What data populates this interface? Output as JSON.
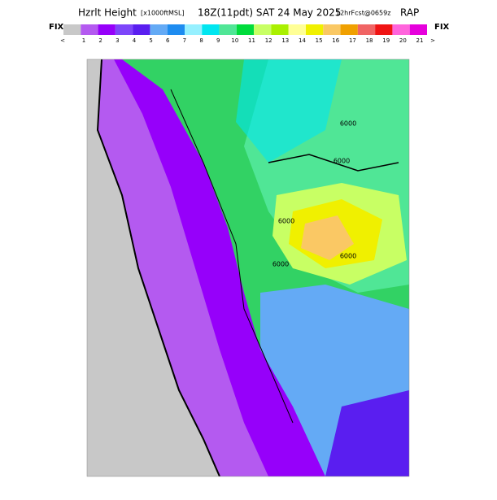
{
  "header": {
    "title": "Hzrlt Height",
    "units": "[x1000ftMSL]",
    "valid": "18Z(11pdt) SAT 24 May 2025",
    "forecast": "12hrFcst@0659z",
    "model": "RAP"
  },
  "colorbar": {
    "left_label": "FIX",
    "right_label": "FIX",
    "low_label": "<",
    "high_label": ">",
    "labels": [
      "1",
      "2",
      "3",
      "4",
      "5",
      "6",
      "7",
      "8",
      "9",
      "10",
      "11",
      "12",
      "13",
      "14",
      "15",
      "16",
      "17",
      "18",
      "19",
      "20",
      "21"
    ],
    "colors": [
      "#c8c8c8",
      "#b45af0",
      "#9600fa",
      "#7d46fa",
      "#5a1ef0",
      "#64aaf5",
      "#1e8cf0",
      "#96f0ff",
      "#00e6f0",
      "#50e696",
      "#00dc3c",
      "#c8ff64",
      "#aaf000",
      "#ffff96",
      "#f0f000",
      "#fac864",
      "#f0a000",
      "#f06464",
      "#f01414",
      "#ff64dc",
      "#e600dc"
    ]
  },
  "map_labels": [
    "6000",
    "6000",
    "6000",
    "6000",
    "6000"
  ]
}
